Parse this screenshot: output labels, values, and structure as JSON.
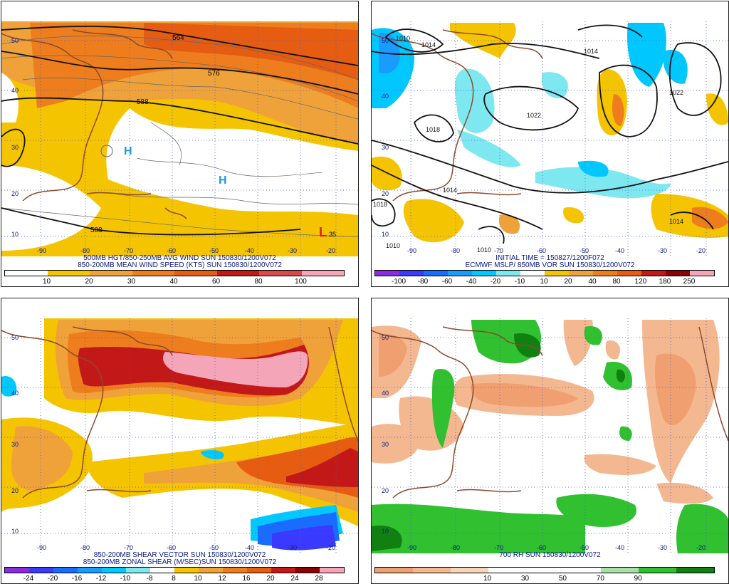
{
  "panels": [
    {
      "id": "wind",
      "caption_lines": [
        "500MB HGT/850-250MB AVG WIND SUN 150830/1200V072",
        "850-200MB MEAN WIND SPEED (KTS) SUN 150830/1200V072"
      ],
      "colorbar_labels": [
        "10",
        "20",
        "30",
        "40",
        "60",
        "80",
        "100"
      ],
      "colorbar_colors": [
        "#ffffff",
        "#f5c400",
        "#f0a23a",
        "#ee7d1e",
        "#e65c10",
        "#c21818",
        "#d84a4a",
        "#f4a6b8"
      ],
      "lat_labels": [
        "50",
        "40",
        "30",
        "20",
        "10"
      ],
      "lon_labels": [
        "-90",
        "-80",
        "-70",
        "-60",
        "-50",
        "-40",
        "-30",
        "-20"
      ],
      "contour_labels": [
        "564",
        "576",
        "588",
        "588"
      ],
      "markers": [
        "H",
        "H",
        "L"
      ],
      "marker_values": [
        "35"
      ]
    },
    {
      "id": "mslp",
      "caption_lines": [
        "INITIAL TIME = 150827/1200F072",
        "ECMWF MSLP/ 850MB VOR SUN 150830/1200V072"
      ],
      "colorbar_labels": [
        "-100",
        "-80",
        "-60",
        "-40",
        "-20",
        "-10",
        "10",
        "20",
        "40",
        "80",
        "120",
        "180",
        "250"
      ],
      "colorbar_colors": [
        "#8a2be2",
        "#3a3aff",
        "#1a6cff",
        "#1a9cff",
        "#00c8ff",
        "#7de8f0",
        "#ffffff",
        "#f5c400",
        "#f0a23a",
        "#ee7d1e",
        "#e65c10",
        "#c21818",
        "#8b0000",
        "#f4a6b8"
      ],
      "lat_labels": [
        "50",
        "40",
        "30",
        "20",
        "10"
      ],
      "lon_labels": [
        "-90",
        "-80",
        "-70",
        "-60",
        "-50",
        "-40",
        "-30",
        "-20"
      ],
      "contour_labels": [
        "1010",
        "1014",
        "1014",
        "1022",
        "1022",
        "1018",
        "1014",
        "1018",
        "1010",
        "1014",
        "1010"
      ]
    },
    {
      "id": "shear",
      "caption_lines": [
        "850-200MB SHEAR VECTOR SUN 150830/1200V072",
        "850-200MB ZONAL SHEAR (M/SEC)SUN 150830/1200V072"
      ],
      "colorbar_labels": [
        "-24",
        "-20",
        "-16",
        "-12",
        "-10",
        "-8",
        "8",
        "10",
        "12",
        "16",
        "20",
        "24",
        "28"
      ],
      "colorbar_colors": [
        "#8a2be2",
        "#3a3aff",
        "#1a6cff",
        "#1a9cff",
        "#00c8ff",
        "#7de8f0",
        "#ffffff",
        "#f5c400",
        "#f0a23a",
        "#ee7d1e",
        "#e65c10",
        "#c21818",
        "#8b0000",
        "#f4a6b8"
      ],
      "lat_labels": [
        "50",
        "40",
        "30",
        "20",
        "10"
      ],
      "lon_labels": [
        "-90",
        "-80",
        "-70",
        "-60",
        "-50",
        "-40",
        "-30",
        "-20"
      ]
    },
    {
      "id": "rh",
      "caption_lines": [
        "700 RH SUN 150830/1200V072"
      ],
      "colorbar_labels": [
        "10",
        "30",
        "50",
        "70",
        "90"
      ],
      "colorbar_colors": [
        "#f0a070",
        "#f4b890",
        "#f8d4b8",
        "#ffffff",
        "#ffffff",
        "#ffffff",
        "#a8e0a8",
        "#30c030",
        "#108010"
      ],
      "lat_labels": [
        "50",
        "40",
        "30",
        "20",
        "10"
      ],
      "lon_labels": [
        "-90",
        "-80",
        "-70",
        "-60",
        "-50",
        "-40",
        "-30",
        "-20"
      ]
    }
  ]
}
